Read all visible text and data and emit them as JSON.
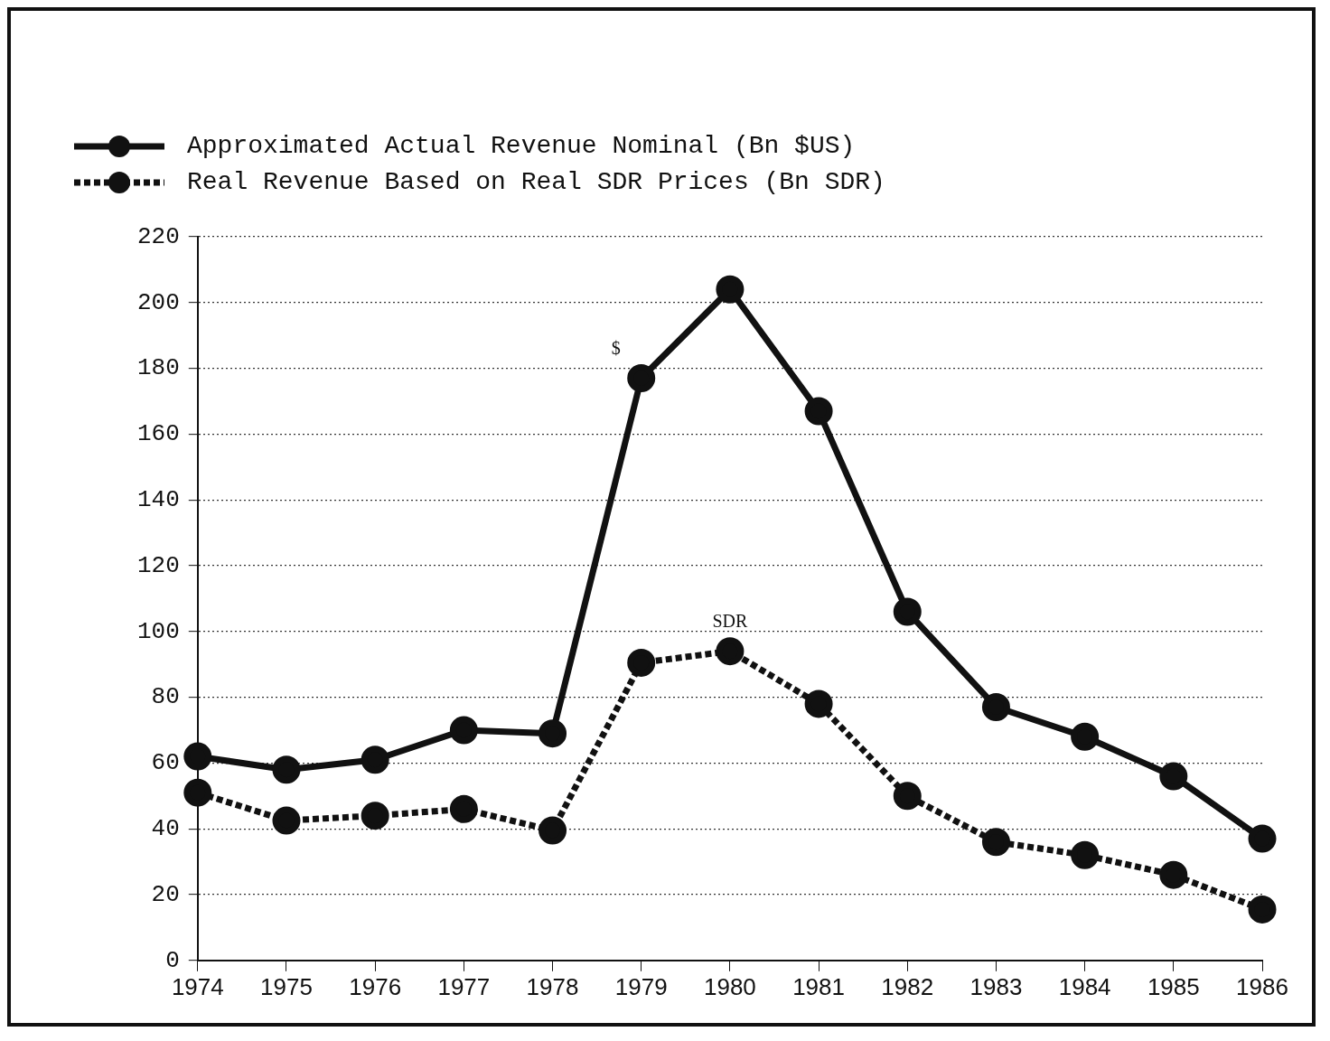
{
  "chart_data": {
    "type": "line",
    "categories": [
      "1974",
      "1975",
      "1976",
      "1977",
      "1978",
      "1979",
      "1980",
      "1981",
      "1982",
      "1983",
      "1984",
      "1985",
      "1986"
    ],
    "series": [
      {
        "name": "Approximated Actual Revenue Nominal (Bn $US)",
        "color": "#111111",
        "line_style": "solid",
        "values": [
          62,
          58,
          61,
          70,
          69,
          177,
          204,
          167,
          106,
          77,
          68,
          56,
          37
        ]
      },
      {
        "name": "Real Revenue Based on Real SDR Prices (Bn SDR)",
        "color": "#111111",
        "line_style": "dashed",
        "values": [
          51,
          42.5,
          44,
          46,
          39.5,
          90.5,
          94,
          78,
          50,
          36,
          32,
          26,
          15.5
        ]
      }
    ],
    "ylim": [
      0,
      220
    ],
    "yticks": [
      0,
      20,
      40,
      60,
      80,
      100,
      120,
      140,
      160,
      180,
      200,
      220
    ],
    "grid": "y",
    "legend": "top left",
    "marker": "circle",
    "annotations": [
      {
        "text": "$",
        "x": "1979",
        "y": 177
      },
      {
        "text": "SDR",
        "x": "1980",
        "y": 94
      }
    ]
  }
}
